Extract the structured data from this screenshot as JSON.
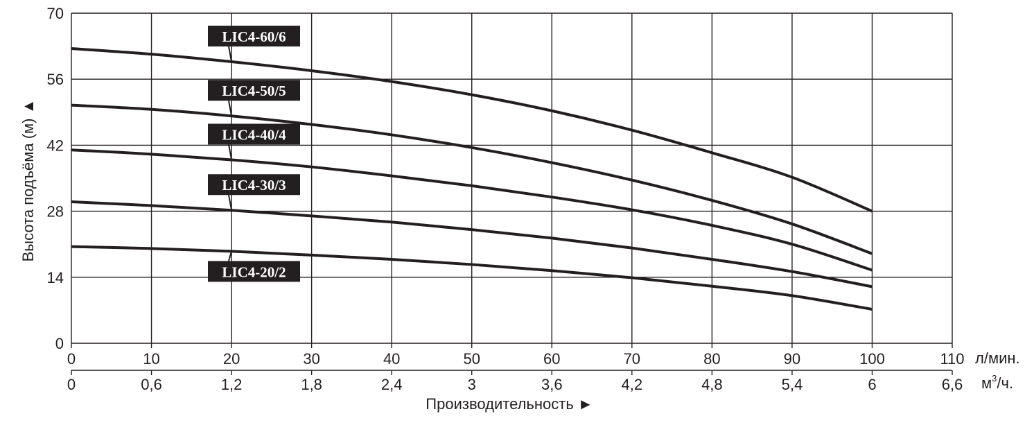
{
  "chart_data": {
    "type": "line",
    "title": "",
    "ylabel": "Высота подъёма (м) ▲",
    "xlabel": "Производительность ►",
    "x_unit_primary": "л/мин.",
    "x_unit_secondary_base": "м",
    "x_unit_secondary_sup": "3",
    "x_unit_secondary_tail": "/ч.",
    "xlim": [
      0,
      110
    ],
    "ylim": [
      0,
      70
    ],
    "grid": true,
    "x_ticks": [
      "0",
      "10",
      "20",
      "30",
      "40",
      "50",
      "60",
      "70",
      "80",
      "90",
      "100",
      "110"
    ],
    "x_ticks_secondary": [
      "0",
      "0,6",
      "1,2",
      "1,8",
      "2,4",
      "3",
      "3,6",
      "4,2",
      "4,8",
      "5,4",
      "6",
      "6,6"
    ],
    "y_ticks": [
      "0",
      "14",
      "28",
      "42",
      "56",
      "70"
    ],
    "series": [
      {
        "name": "LIC4-60/6",
        "x": [
          0,
          10,
          20,
          30,
          40,
          50,
          60,
          70,
          80,
          90,
          100
        ],
        "y": [
          62.5,
          61.3,
          59.7,
          57.8,
          55.5,
          52.7,
          49.3,
          45.2,
          40.4,
          35.2,
          28.0
        ]
      },
      {
        "name": "LIC4-50/5",
        "x": [
          0,
          10,
          20,
          30,
          40,
          50,
          60,
          70,
          80,
          90,
          100
        ],
        "y": [
          50.5,
          49.6,
          48.2,
          46.4,
          44.2,
          41.5,
          38.3,
          34.6,
          30.3,
          25.3,
          19.0
        ]
      },
      {
        "name": "LIC4-40/4",
        "x": [
          0,
          10,
          20,
          30,
          40,
          50,
          60,
          70,
          80,
          90,
          100
        ],
        "y": [
          41.0,
          40.1,
          38.9,
          37.4,
          35.5,
          33.4,
          31.0,
          28.3,
          25.0,
          21.0,
          15.5
        ]
      },
      {
        "name": "LIC4-30/3",
        "x": [
          0,
          10,
          20,
          30,
          40,
          50,
          60,
          70,
          80,
          90,
          100
        ],
        "y": [
          30.0,
          29.2,
          28.2,
          27.0,
          25.7,
          24.1,
          22.3,
          20.2,
          17.8,
          15.2,
          12.0
        ]
      },
      {
        "name": "LIC4-20/2",
        "x": [
          0,
          10,
          20,
          30,
          40,
          50,
          60,
          70,
          80,
          90,
          100
        ],
        "y": [
          20.5,
          20.1,
          19.5,
          18.7,
          17.8,
          16.7,
          15.4,
          13.9,
          12.1,
          10.1,
          7.2
        ]
      }
    ],
    "series_color": "#231f20",
    "label_bg": "#231f20"
  }
}
